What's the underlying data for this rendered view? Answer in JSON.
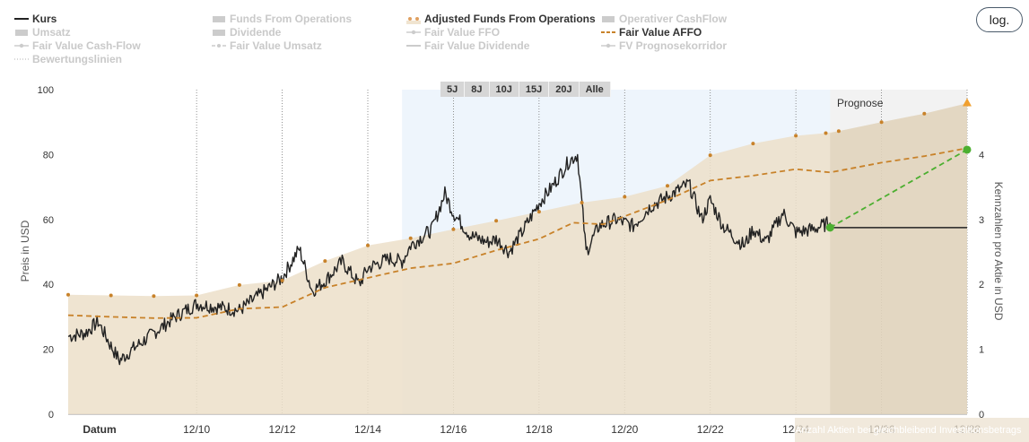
{
  "legend": {
    "items": [
      {
        "label": "Kurs",
        "active": true,
        "symbol": "line",
        "color": "#222222"
      },
      {
        "label": "Umsatz",
        "active": false,
        "symbol": "area",
        "color": "#cccccc"
      },
      {
        "label": "Fair Value Cash-Flow",
        "active": false,
        "symbol": "dotline",
        "color": "#cccccc"
      },
      {
        "label": "Bewertungslinien",
        "active": false,
        "symbol": "dotted",
        "color": "#cccccc"
      },
      {
        "label": "Funds From Operations",
        "active": false,
        "symbol": "area",
        "color": "#cccccc"
      },
      {
        "label": "Dividende",
        "active": false,
        "symbol": "area",
        "color": "#cccccc"
      },
      {
        "label": "Fair Value Umsatz",
        "active": false,
        "symbol": "dashdot",
        "color": "#cccccc"
      },
      {
        "label": "Adjusted Funds From Operations",
        "active": true,
        "symbol": "dots",
        "color": "#e0a060"
      },
      {
        "label": "Fair Value FFO",
        "active": false,
        "symbol": "dotline",
        "color": "#cccccc"
      },
      {
        "label": "Fair Value Dividende",
        "active": false,
        "symbol": "line",
        "color": "#cccccc"
      },
      {
        "label": "Operativer CashFlow",
        "active": false,
        "symbol": "area",
        "color": "#cccccc"
      },
      {
        "label": "Fair Value AFFO",
        "active": true,
        "symbol": "dashed",
        "color": "#c8822a"
      },
      {
        "label": "FV Prognosekorridor",
        "active": false,
        "symbol": "dotline",
        "color": "#cccccc"
      }
    ]
  },
  "log_button": "log.",
  "zoom": [
    "5J",
    "8J",
    "10J",
    "15J",
    "20J",
    "Alle"
  ],
  "prognose_label": "Prognose",
  "footer_text": "Anzahl Aktien bei gleichbleibend Investitionsbetrags",
  "colors": {
    "price": "#222222",
    "affo_area": "#ecdfc9",
    "fair_value": "#c8822a",
    "affo_dots": "#c8822a",
    "forecast_green": "#4caf30",
    "zoom_highlight": "#eef5fc",
    "forecast_band": "#d9d9d9"
  },
  "chart_data": {
    "type": "line",
    "ylabel": "Preis in USD",
    "y2label": "Kennzahlen pro Aktie in USD",
    "xlabel": "Datum",
    "ylim": [
      0,
      100
    ],
    "y2lim": [
      0,
      5
    ],
    "y_ticks": [
      0,
      20,
      40,
      60,
      80,
      100
    ],
    "y2_ticks": [
      0,
      1,
      2,
      3,
      4
    ],
    "x_range": [
      2007,
      2028
    ],
    "x_ticks": [
      {
        "year": 2010,
        "label": "12/10"
      },
      {
        "year": 2012,
        "label": "12/12"
      },
      {
        "year": 2014,
        "label": "12/14"
      },
      {
        "year": 2016,
        "label": "12/16"
      },
      {
        "year": 2018,
        "label": "12/18"
      },
      {
        "year": 2020,
        "label": "12/20"
      },
      {
        "year": 2022,
        "label": "12/22"
      },
      {
        "year": 2024,
        "label": "12/24"
      },
      {
        "year": 2026,
        "label": "12/26"
      },
      {
        "year": 2028,
        "label": "12/28"
      }
    ],
    "zoom_window_start_year": 2014.8,
    "forecast_start_year": 2024.8,
    "affo_per_share": [
      {
        "year": 2007.0,
        "value": 1.84
      },
      {
        "year": 2008.0,
        "value": 1.83
      },
      {
        "year": 2009.0,
        "value": 1.82
      },
      {
        "year": 2010.0,
        "value": 1.83
      },
      {
        "year": 2011.0,
        "value": 1.99
      },
      {
        "year": 2012.0,
        "value": 2.06
      },
      {
        "year": 2013.0,
        "value": 2.36
      },
      {
        "year": 2014.0,
        "value": 2.6
      },
      {
        "year": 2015.0,
        "value": 2.71
      },
      {
        "year": 2016.0,
        "value": 2.85
      },
      {
        "year": 2017.0,
        "value": 2.98
      },
      {
        "year": 2018.0,
        "value": 3.12
      },
      {
        "year": 2019.0,
        "value": 3.26
      },
      {
        "year": 2020.0,
        "value": 3.35
      },
      {
        "year": 2021.0,
        "value": 3.52
      },
      {
        "year": 2022.0,
        "value": 3.99
      },
      {
        "year": 2023.0,
        "value": 4.17
      },
      {
        "year": 2024.0,
        "value": 4.29
      },
      {
        "year": 2024.7,
        "value": 4.33
      },
      {
        "year": 2025.0,
        "value": 4.36
      },
      {
        "year": 2026.0,
        "value": 4.5
      },
      {
        "year": 2027.0,
        "value": 4.63
      },
      {
        "year": 2028.0,
        "value": 4.79
      }
    ],
    "fair_value_affo": [
      {
        "year": 2007.0,
        "value": 30.5
      },
      {
        "year": 2008.0,
        "value": 30.0
      },
      {
        "year": 2009.0,
        "value": 29.6
      },
      {
        "year": 2010.0,
        "value": 29.7
      },
      {
        "year": 2011.0,
        "value": 32.5
      },
      {
        "year": 2012.0,
        "value": 33.0
      },
      {
        "year": 2013.0,
        "value": 39.0
      },
      {
        "year": 2014.0,
        "value": 42.0
      },
      {
        "year": 2015.0,
        "value": 45.0
      },
      {
        "year": 2016.0,
        "value": 46.5
      },
      {
        "year": 2017.0,
        "value": 50.5
      },
      {
        "year": 2018.0,
        "value": 54.0
      },
      {
        "year": 2018.8,
        "value": 59.0
      },
      {
        "year": 2019.5,
        "value": 58.5
      },
      {
        "year": 2020.0,
        "value": 61.0
      },
      {
        "year": 2021.0,
        "value": 66.0
      },
      {
        "year": 2022.0,
        "value": 72.0
      },
      {
        "year": 2023.0,
        "value": 73.5
      },
      {
        "year": 2024.0,
        "value": 75.5
      },
      {
        "year": 2024.8,
        "value": 74.5
      },
      {
        "year": 2025.0,
        "value": 75.0
      },
      {
        "year": 2026.0,
        "value": 77.5
      },
      {
        "year": 2027.0,
        "value": 79.5
      },
      {
        "year": 2028.0,
        "value": 82.0
      }
    ],
    "price_close": [
      {
        "year": 2007.0,
        "value": 24.0
      },
      {
        "year": 2007.4,
        "value": 25.0
      },
      {
        "year": 2007.7,
        "value": 28.5
      },
      {
        "year": 2008.0,
        "value": 21.0
      },
      {
        "year": 2008.2,
        "value": 16.5
      },
      {
        "year": 2008.5,
        "value": 20.0
      },
      {
        "year": 2009.0,
        "value": 25.0
      },
      {
        "year": 2009.5,
        "value": 30.0
      },
      {
        "year": 2010.0,
        "value": 34.0
      },
      {
        "year": 2010.5,
        "value": 33.0
      },
      {
        "year": 2011.0,
        "value": 32.0
      },
      {
        "year": 2011.6,
        "value": 38.0
      },
      {
        "year": 2012.0,
        "value": 42.0
      },
      {
        "year": 2012.4,
        "value": 51.0
      },
      {
        "year": 2012.7,
        "value": 38.0
      },
      {
        "year": 2013.0,
        "value": 41.0
      },
      {
        "year": 2013.4,
        "value": 47.0
      },
      {
        "year": 2013.8,
        "value": 40.0
      },
      {
        "year": 2014.0,
        "value": 45.0
      },
      {
        "year": 2014.5,
        "value": 48.0
      },
      {
        "year": 2014.8,
        "value": 47.0
      },
      {
        "year": 2015.0,
        "value": 52.0
      },
      {
        "year": 2015.5,
        "value": 57.0
      },
      {
        "year": 2015.8,
        "value": 68.0
      },
      {
        "year": 2016.0,
        "value": 62.0
      },
      {
        "year": 2016.4,
        "value": 55.0
      },
      {
        "year": 2016.8,
        "value": 53.0
      },
      {
        "year": 2017.0,
        "value": 54.0
      },
      {
        "year": 2017.3,
        "value": 50.0
      },
      {
        "year": 2017.6,
        "value": 56.0
      },
      {
        "year": 2018.0,
        "value": 65.0
      },
      {
        "year": 2018.3,
        "value": 70.0
      },
      {
        "year": 2018.7,
        "value": 78.0
      },
      {
        "year": 2018.9,
        "value": 80.0
      },
      {
        "year": 2019.1,
        "value": 50.0
      },
      {
        "year": 2019.4,
        "value": 58.0
      },
      {
        "year": 2019.8,
        "value": 60.0
      },
      {
        "year": 2020.2,
        "value": 58.0
      },
      {
        "year": 2020.6,
        "value": 64.0
      },
      {
        "year": 2021.0,
        "value": 67.0
      },
      {
        "year": 2021.5,
        "value": 71.0
      },
      {
        "year": 2021.8,
        "value": 60.0
      },
      {
        "year": 2022.0,
        "value": 66.0
      },
      {
        "year": 2022.3,
        "value": 58.0
      },
      {
        "year": 2022.6,
        "value": 54.0
      },
      {
        "year": 2022.8,
        "value": 52.0
      },
      {
        "year": 2023.0,
        "value": 57.0
      },
      {
        "year": 2023.3,
        "value": 53.0
      },
      {
        "year": 2023.7,
        "value": 62.0
      },
      {
        "year": 2024.0,
        "value": 56.0
      },
      {
        "year": 2024.4,
        "value": 57.0
      },
      {
        "year": 2024.8,
        "value": 59.0
      }
    ],
    "forecast_price_line": {
      "start_year": 2024.8,
      "end_year": 2028.0,
      "value": 57.5
    },
    "forecast_green_line": [
      {
        "year": 2024.8,
        "value": 57.5
      },
      {
        "year": 2028.0,
        "value": 81.5
      }
    ],
    "forecast_end_marker": {
      "year": 2028.0,
      "value": 4.8
    }
  }
}
